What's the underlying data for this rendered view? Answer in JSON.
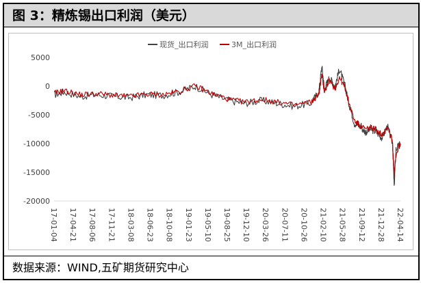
{
  "figure": {
    "title": "图 3：精炼锡出口利润（美元）",
    "source": "数据来源：WIND,五矿期货研究中心"
  },
  "chart_data": {
    "type": "line",
    "title": "",
    "xlabel": "",
    "ylabel": "",
    "ylim": [
      -20000,
      5000
    ],
    "yticks": [
      "5000",
      "0",
      "-5000",
      "-10000",
      "-15000",
      "-20000"
    ],
    "yticks_values": [
      5000,
      0,
      -5000,
      -10000,
      -15000,
      -20000
    ],
    "xticks": [
      "17-01-04",
      "17-04-21",
      "17-08-06",
      "17-11-21",
      "18-03-08",
      "18-06-23",
      "18-10-08",
      "19-01-23",
      "19-05-10",
      "19-08-25",
      "19-12-10",
      "20-03-26",
      "20-07-11",
      "20-10-26",
      "21-02-10",
      "21-05-28",
      "21-09-12",
      "21-12-28",
      "22-04-14"
    ],
    "grid": false,
    "legend_position": "top-center",
    "series": [
      {
        "name": "现货_出口利润",
        "color": "#404040",
        "x": [
          "2017-01-04",
          "2017-03-01",
          "2017-06-01",
          "2017-09-01",
          "2017-12-01",
          "2018-03-01",
          "2018-06-01",
          "2018-09-01",
          "2018-12-01",
          "2019-03-01",
          "2019-06-01",
          "2019-09-01",
          "2019-12-01",
          "2020-03-01",
          "2020-06-01",
          "2020-09-01",
          "2020-12-01",
          "2021-01-15",
          "2021-02-01",
          "2021-02-15",
          "2021-03-15",
          "2021-04-15",
          "2021-05-10",
          "2021-06-10",
          "2021-07-01",
          "2021-08-01",
          "2021-09-01",
          "2021-10-01",
          "2021-11-01",
          "2021-12-01",
          "2022-01-01",
          "2022-02-01",
          "2022-03-01",
          "2022-03-10",
          "2022-03-20",
          "2022-04-14"
        ],
        "values": [
          -1500,
          -1000,
          -1800,
          -1500,
          -1800,
          -2000,
          -1500,
          -1600,
          -1000,
          0,
          -1500,
          -2500,
          -3000,
          -2500,
          -3000,
          -3500,
          -3000,
          -1000,
          3500,
          -500,
          1500,
          0,
          3000,
          0,
          -3000,
          -6500,
          -7000,
          -8000,
          -7500,
          -8000,
          -9000,
          -7000,
          -10000,
          -17500,
          -11000,
          -10000
        ]
      },
      {
        "name": "3M_出口利润",
        "color": "#c00000",
        "x": [
          "2017-01-04",
          "2017-03-01",
          "2017-06-01",
          "2017-09-01",
          "2017-12-01",
          "2018-03-01",
          "2018-06-01",
          "2018-09-01",
          "2018-12-01",
          "2019-03-01",
          "2019-06-01",
          "2019-09-01",
          "2019-12-01",
          "2020-03-01",
          "2020-06-01",
          "2020-09-01",
          "2020-12-01",
          "2021-01-15",
          "2021-02-01",
          "2021-02-15",
          "2021-03-15",
          "2021-04-15",
          "2021-05-10",
          "2021-06-10",
          "2021-07-01",
          "2021-08-01",
          "2021-09-01",
          "2021-10-01",
          "2021-11-01",
          "2021-12-01",
          "2022-01-01",
          "2022-02-01",
          "2022-03-01",
          "2022-03-10",
          "2022-03-20",
          "2022-04-14"
        ],
        "values": [
          -1200,
          -800,
          -1500,
          -1300,
          -1600,
          -1800,
          -1400,
          -1500,
          -900,
          0,
          -1300,
          -2300,
          -2800,
          -2300,
          -2800,
          -3300,
          -2800,
          -1500,
          2000,
          -1000,
          1000,
          -500,
          1500,
          -300,
          -2800,
          -6000,
          -6800,
          -7500,
          -7200,
          -7500,
          -8500,
          -7000,
          -9500,
          -15500,
          -12000,
          -10000
        ]
      }
    ]
  }
}
